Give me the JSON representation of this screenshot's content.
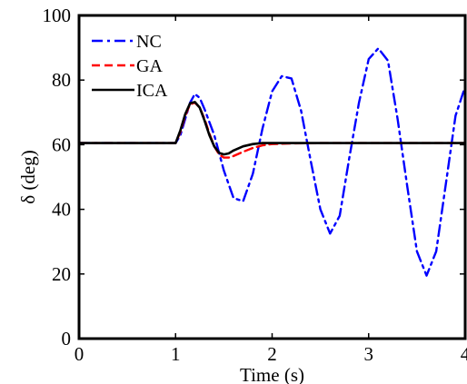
{
  "chart_data": {
    "type": "line",
    "title": "",
    "xlabel": "Time (s)",
    "ylabel": "δ (deg)",
    "xlim": [
      0,
      4
    ],
    "ylim": [
      0,
      100
    ],
    "xticks": [
      "0",
      "1",
      "2",
      "3",
      "4"
    ],
    "yticks": [
      "0",
      "20",
      "40",
      "60",
      "80",
      "100"
    ],
    "grid": false,
    "legend_position": "top-left",
    "series": [
      {
        "name": "NC",
        "color": "#0000ff",
        "style": "dash-dot",
        "x": [
          0,
          1.0,
          1.05,
          1.1,
          1.15,
          1.2,
          1.25,
          1.3,
          1.4,
          1.5,
          1.6,
          1.7,
          1.8,
          1.9,
          2.0,
          2.1,
          2.2,
          2.3,
          2.4,
          2.5,
          2.6,
          2.7,
          2.8,
          2.9,
          3.0,
          3.1,
          3.2,
          3.3,
          3.4,
          3.5,
          3.6,
          3.7,
          3.8,
          3.9,
          4.0
        ],
        "y": [
          60.5,
          60.5,
          63,
          68,
          73,
          75.7,
          74.5,
          71,
          63,
          52,
          43.5,
          42.5,
          51,
          65,
          76.5,
          81.2,
          80.5,
          70.5,
          55,
          40,
          32.5,
          38,
          56,
          73,
          86.5,
          89.8,
          86,
          68,
          47,
          27,
          19.5,
          27,
          48,
          69,
          78
        ]
      },
      {
        "name": "GA",
        "color": "#ff0000",
        "style": "dashed",
        "x": [
          0,
          1.0,
          1.05,
          1.1,
          1.15,
          1.2,
          1.25,
          1.3,
          1.35,
          1.4,
          1.45,
          1.5,
          1.55,
          1.6,
          1.7,
          1.8,
          1.9,
          2.0,
          2.2,
          2.5,
          3.0,
          4.0
        ],
        "y": [
          60.5,
          60.5,
          64,
          69,
          72.5,
          73,
          71.5,
          68,
          63.5,
          59.5,
          57,
          56,
          56,
          56.5,
          57.8,
          59,
          59.8,
          60.2,
          60.4,
          60.5,
          60.5,
          60.5
        ]
      },
      {
        "name": "ICA",
        "color": "#000000",
        "style": "solid",
        "x": [
          0,
          1.0,
          1.05,
          1.1,
          1.15,
          1.2,
          1.25,
          1.3,
          1.35,
          1.4,
          1.45,
          1.5,
          1.55,
          1.6,
          1.7,
          1.8,
          1.9,
          2.0,
          2.2,
          2.5,
          3.0,
          4.0
        ],
        "y": [
          60.5,
          60.5,
          64.5,
          69.5,
          72.8,
          73.2,
          71.5,
          67.5,
          63,
          59.5,
          57.5,
          57,
          57.3,
          58.2,
          59.5,
          60.2,
          60.5,
          60.5,
          60.5,
          60.5,
          60.5,
          60.5
        ]
      }
    ]
  }
}
